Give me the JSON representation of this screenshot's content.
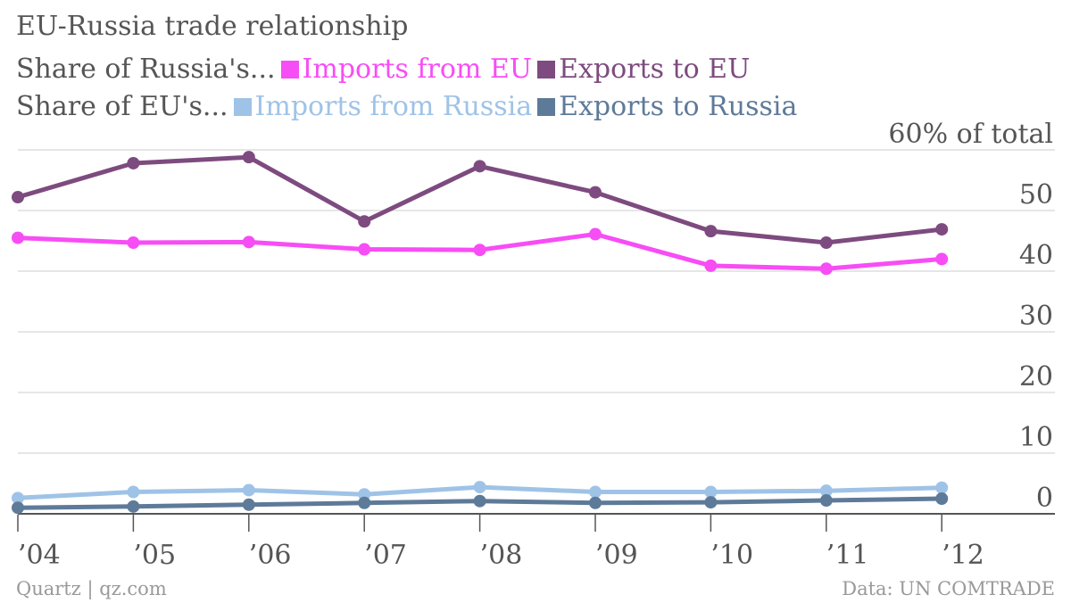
{
  "chart_data": {
    "type": "line",
    "title": "EU-Russia trade relationship",
    "legend_groups": [
      {
        "label": "Share of Russia's...",
        "series_index": [
          0,
          1
        ]
      },
      {
        "label": "Share of EU's...",
        "series_index": [
          2,
          3
        ]
      }
    ],
    "x": [
      "2004",
      "2005",
      "2006",
      "2007",
      "2008",
      "2009",
      "2010",
      "2011",
      "2012"
    ],
    "x_tick_labels": [
      "’04",
      "’05",
      "’06",
      "’07",
      "’08",
      "’09",
      "’10",
      "’11",
      "’12"
    ],
    "y_tick_labels": [
      "0",
      "10",
      "20",
      "30",
      "40",
      "50",
      "60% of total"
    ],
    "y_ticks": [
      0,
      10,
      20,
      30,
      40,
      50,
      60
    ],
    "ylim": [
      0,
      60
    ],
    "grid": true,
    "y_axis_side": "right",
    "legend_position": "top-left",
    "series": [
      {
        "name": "Imports from EU",
        "color": "#f74df5",
        "values": [
          45.5,
          44.7,
          44.8,
          43.6,
          43.5,
          46.1,
          40.9,
          40.4,
          42.0
        ]
      },
      {
        "name": "Exports to EU",
        "color": "#7d4b7f",
        "values": [
          52.2,
          57.8,
          58.8,
          48.2,
          57.3,
          53.0,
          46.6,
          44.7,
          46.9
        ]
      },
      {
        "name": "Imports from Russia",
        "color": "#9fc3e7",
        "values": [
          2.6,
          3.6,
          3.9,
          3.2,
          4.4,
          3.6,
          3.6,
          3.8,
          4.3
        ]
      },
      {
        "name": "Exports to Russia",
        "color": "#5e7a99",
        "values": [
          1.0,
          1.2,
          1.5,
          1.8,
          2.1,
          1.8,
          1.9,
          2.2,
          2.5
        ]
      }
    ]
  },
  "footer": {
    "source_left": "Quartz | qz.com",
    "source_right": "Data: UN COMTRADE"
  }
}
